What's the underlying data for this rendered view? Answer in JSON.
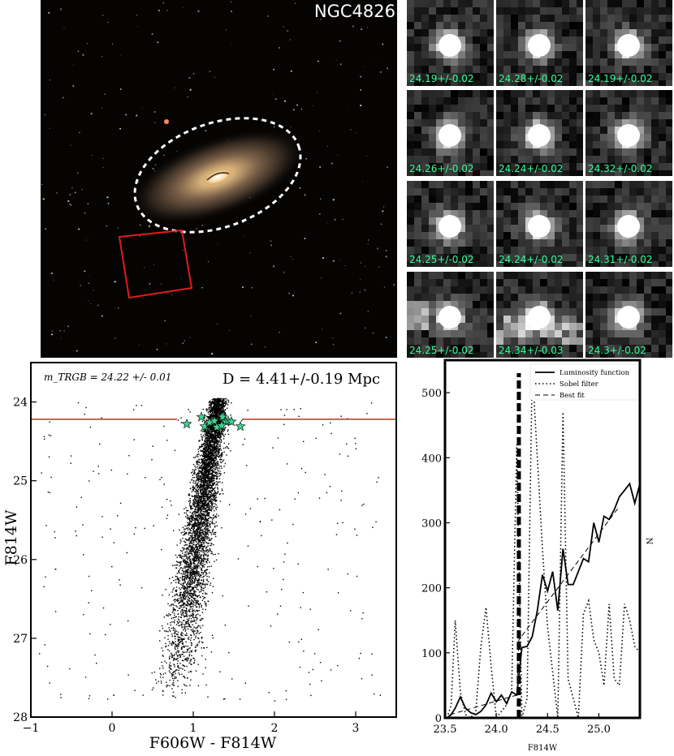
{
  "galaxy": {
    "title": "NGC4826"
  },
  "thumbnails": [
    {
      "label": "24.19+/-0.02"
    },
    {
      "label": "24.28+/-0.02"
    },
    {
      "label": "24.19+/-0.02"
    },
    {
      "label": "24.26+/-0.02"
    },
    {
      "label": "24.24+/-0.02"
    },
    {
      "label": "24.32+/-0.02"
    },
    {
      "label": "24.25+/-0.02"
    },
    {
      "label": "24.24+/-0.02"
    },
    {
      "label": "24.31+/-0.02"
    },
    {
      "label": "24.25+/-0.02"
    },
    {
      "label": "24.34+/-0.03"
    },
    {
      "label": "24.3+/-0.02"
    }
  ],
  "chart_data": [
    {
      "type": "scatter",
      "trgb_label": "m_TRGB = 24.22 +/- 0.01",
      "distance_label": "D = 4.41+/-0.19 Mpc",
      "xlabel": "F606W - F814W",
      "ylabel": "F814W",
      "xlim": [
        -1,
        3.5
      ],
      "ylim": [
        28,
        23.5
      ],
      "y_inverted": true,
      "xticks": [
        "−1",
        "0",
        "1",
        "2",
        "3"
      ],
      "yticks": [
        "24",
        "25",
        "26",
        "27",
        "28"
      ],
      "trgb_line": 24.22,
      "trgb_line_color": "#e0201c",
      "star_color": "#3fd08f",
      "tip_stars": [
        {
          "x": 0.92,
          "y": 24.28
        },
        {
          "x": 1.1,
          "y": 24.19
        },
        {
          "x": 1.14,
          "y": 24.31
        },
        {
          "x": 1.2,
          "y": 24.26
        },
        {
          "x": 1.26,
          "y": 24.24
        },
        {
          "x": 1.29,
          "y": 24.32
        },
        {
          "x": 1.36,
          "y": 24.19
        },
        {
          "x": 1.4,
          "y": 24.25
        },
        {
          "x": 1.43,
          "y": 24.24
        },
        {
          "x": 1.47,
          "y": 24.25
        },
        {
          "x": 1.58,
          "y": 24.31
        },
        {
          "x": 1.35,
          "y": 24.3
        }
      ],
      "rgb_branch": {
        "color_at_28": 0.72,
        "color_at_24": 1.3,
        "faint_limit": 27.75,
        "bright_limit": 23.95
      }
    },
    {
      "type": "line",
      "xlabel": "F814W",
      "ylabel": "N",
      "xlim": [
        23.5,
        25.4
      ],
      "ylim": [
        0,
        550
      ],
      "xticks": [
        23.5,
        24.0,
        24.5,
        25.0
      ],
      "yticks": [
        0,
        100,
        200,
        300,
        400,
        500
      ],
      "legend": [
        "Luminosity function",
        "Sobel filter",
        "Best fit"
      ],
      "legend_position": "top-right",
      "trgb_marker": 24.22,
      "series": [
        {
          "name": "Luminosity function",
          "style": "solid",
          "x": [
            23.52,
            23.56,
            23.6,
            23.65,
            23.7,
            23.75,
            23.8,
            23.85,
            23.9,
            23.95,
            24.0,
            24.05,
            24.1,
            24.15,
            24.2,
            24.25,
            24.3,
            24.35,
            24.4,
            24.45,
            24.5,
            24.55,
            24.6,
            24.65,
            24.7,
            24.75,
            24.8,
            24.85,
            24.9,
            24.95,
            25.0,
            25.05,
            25.1,
            25.15,
            25.2,
            25.25,
            25.3,
            25.35,
            25.4
          ],
          "y": [
            0,
            5,
            15,
            32,
            15,
            8,
            5,
            10,
            20,
            38,
            25,
            35,
            22,
            40,
            35,
            108,
            110,
            125,
            165,
            220,
            195,
            225,
            165,
            260,
            205,
            205,
            225,
            245,
            240,
            300,
            270,
            310,
            305,
            320,
            340,
            350,
            360,
            330,
            360
          ]
        },
        {
          "name": "Sobel filter",
          "style": "dotted",
          "x": [
            23.52,
            23.56,
            23.6,
            23.65,
            23.7,
            23.75,
            23.8,
            23.85,
            23.9,
            23.95,
            24.0,
            24.05,
            24.1,
            24.15,
            24.2,
            24.25,
            24.3,
            24.35,
            24.4,
            24.45,
            24.5,
            24.55,
            24.6,
            24.65,
            24.7,
            24.75,
            24.8,
            24.85,
            24.9,
            24.95,
            25.0,
            25.05,
            25.1,
            25.15,
            25.2,
            25.25,
            25.3,
            25.35,
            25.4
          ],
          "y": [
            0,
            20,
            150,
            40,
            5,
            0,
            10,
            110,
            170,
            80,
            0,
            10,
            20,
            40,
            420,
            0,
            30,
            540,
            400,
            260,
            140,
            70,
            0,
            470,
            60,
            30,
            0,
            160,
            180,
            120,
            100,
            50,
            175,
            60,
            50,
            175,
            150,
            110,
            100
          ]
        },
        {
          "name": "Best fit",
          "style": "dashed",
          "x": [
            23.55,
            24.2,
            24.22,
            25.2
          ],
          "y": [
            5,
            35,
            120,
            325
          ]
        }
      ]
    }
  ]
}
